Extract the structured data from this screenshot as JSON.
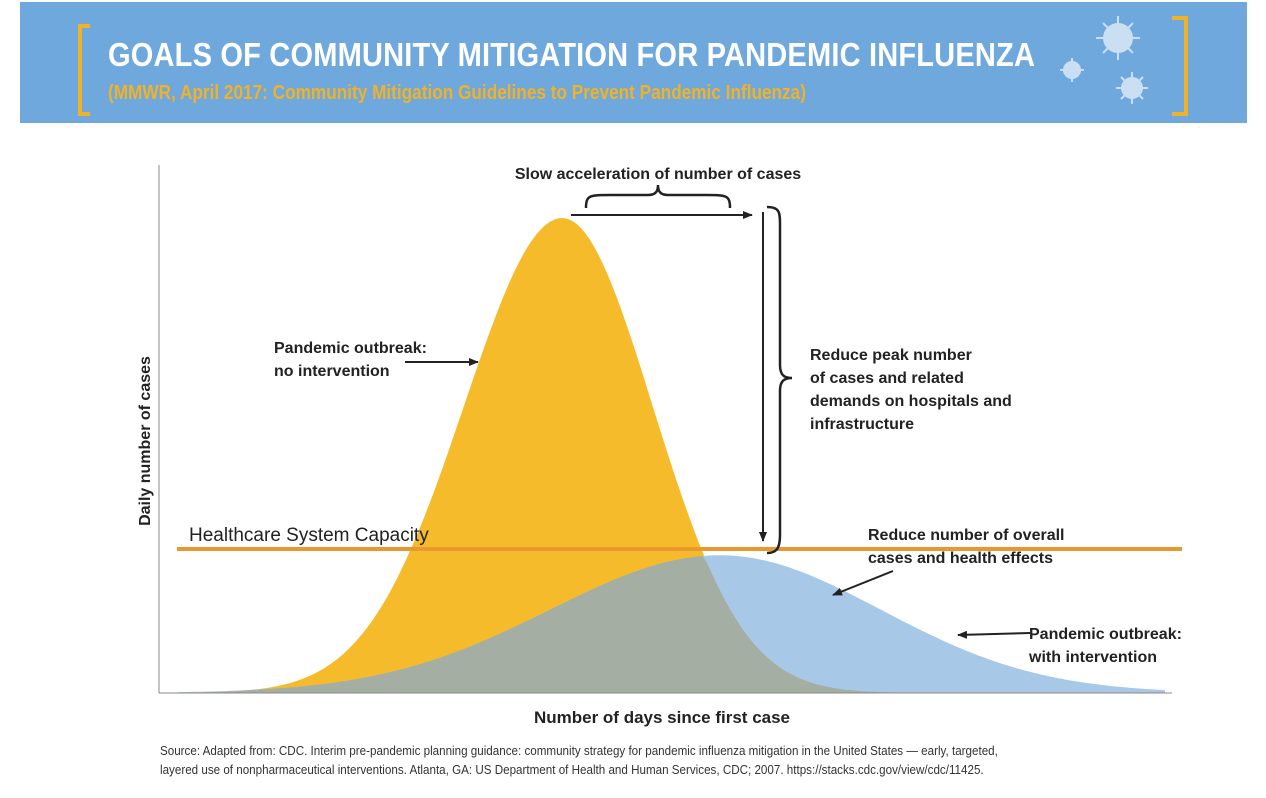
{
  "banner": {
    "title": "GOALS OF COMMUNITY MITIGATION FOR PANDEMIC INFLUENZA",
    "subtitle": "(MMWR, April 2017: Community Mitigation Guidelines to Prevent Pandemic Influenza)",
    "background_color": "#6fa8dc",
    "bracket_color": "#f0b228",
    "icon": "virus-icon"
  },
  "chart_data": {
    "type": "area",
    "xlabel": "Number of days since first case",
    "ylabel": "Daily number of cases",
    "ticks_shown": false,
    "grid": false,
    "series": [
      {
        "name": "Pandemic outbreak: no intervention",
        "color": "#f6bb2a",
        "peak_relative_x": 0.39,
        "relative_height": 1.0
      },
      {
        "name": "Pandemic outbreak: with intervention",
        "color": "#a8c8e8",
        "peak_relative_x": 0.55,
        "relative_height": 0.29
      }
    ],
    "overlap_color": "#a5aea2",
    "capacity_line": {
      "label": "Healthcare System Capacity",
      "color": "#e8982e",
      "relative_height": 0.31
    },
    "annotations": {
      "slow_acceleration": "Slow acceleration of number of cases",
      "reduce_peak": [
        "Reduce peak number",
        "of cases and related",
        "demands on hospitals and",
        "infrastructure"
      ],
      "reduce_overall": [
        "Reduce number of overall",
        "cases and health effects"
      ],
      "no_intervention": [
        "Pandemic outbreak:",
        "no intervention"
      ],
      "with_intervention": [
        "Pandemic outbreak:",
        "with intervention"
      ]
    }
  },
  "source": {
    "line1": "Source: Adapted from: CDC. Interim pre-pandemic planning guidance: community strategy for pandemic influenza mitigation in the United States — early, targeted,",
    "line2": "layered use of nonpharmaceutical interventions. Atlanta, GA: US Department of Health and Human Services, CDC; 2007. https://stacks.cdc.gov/view/cdc/11425."
  }
}
